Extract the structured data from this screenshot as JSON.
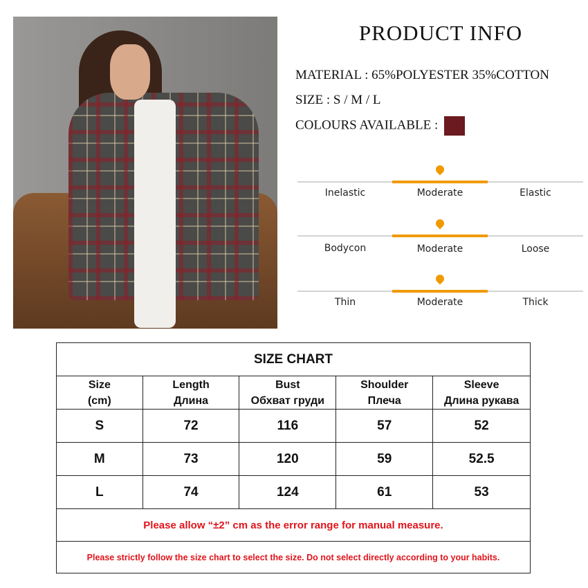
{
  "product_info": {
    "title": "PRODUCT INFO",
    "material": "MATERIAL : 65%POLYESTER 35%COTTON",
    "size": "SIZE : S / M / L",
    "colours_label": "COLOURS AVAILABLE :",
    "colours": [
      "#6b1a1f"
    ]
  },
  "colors": {
    "accent": "#f09a00",
    "scale_line": "#d3d3d3",
    "note_red": "#e0141b"
  },
  "scales": [
    {
      "left": "Inelastic",
      "middle": "Moderate",
      "right": "Elastic",
      "selected": "Moderate"
    },
    {
      "left": "Bodycon",
      "middle": "Moderate",
      "right": "Loose",
      "selected": "Moderate"
    },
    {
      "left": "Thin",
      "middle": "Moderate",
      "right": "Thick",
      "selected": "Moderate"
    }
  ],
  "size_chart": {
    "title": "SIZE CHART",
    "headers": [
      {
        "en": "Size",
        "ru": "(cm)"
      },
      {
        "en": "Length",
        "ru": "Длина"
      },
      {
        "en": "Bust",
        "ru": "Обхват груди"
      },
      {
        "en": "Shoulder",
        "ru": "Плеча"
      },
      {
        "en": "Sleeve",
        "ru": "Длина рукава"
      }
    ],
    "rows": [
      [
        "S",
        "72",
        "116",
        "57",
        "52"
      ],
      [
        "M",
        "73",
        "120",
        "59",
        "52.5"
      ],
      [
        "L",
        "74",
        "124",
        "61",
        "53"
      ]
    ],
    "note1": "Please allow “±2” cm as the error range for manual measure.",
    "note2": "Please strictly follow the size chart  to select the size. Do not select directly according to your habits."
  }
}
